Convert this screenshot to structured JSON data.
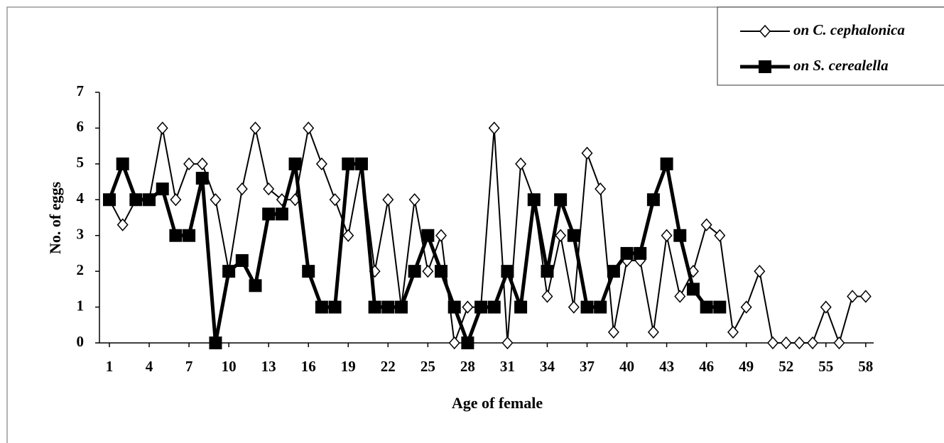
{
  "chart_data": {
    "type": "line",
    "x_label": "Age of female",
    "y_label": "No. of eggs",
    "x": [
      1,
      2,
      3,
      4,
      5,
      6,
      7,
      8,
      9,
      10,
      11,
      12,
      13,
      14,
      15,
      16,
      17,
      18,
      19,
      20,
      21,
      22,
      23,
      24,
      25,
      26,
      27,
      28,
      29,
      30,
      31,
      32,
      33,
      34,
      35,
      36,
      37,
      38,
      39,
      40,
      41,
      42,
      43,
      44,
      45,
      46,
      47,
      48,
      49,
      50,
      51,
      52,
      53,
      54,
      55,
      56,
      57,
      58
    ],
    "series": [
      {
        "name": "on C. cephalonica",
        "color": "#000000",
        "marker": "diamond",
        "values": [
          4,
          3.3,
          4,
          4,
          6,
          4,
          5,
          5,
          4,
          2,
          4.3,
          6,
          4.3,
          4,
          4,
          6,
          5,
          4,
          3,
          5,
          2,
          4,
          1,
          4,
          2,
          3,
          0,
          1,
          1,
          6,
          0,
          5,
          4,
          1.3,
          3,
          1,
          5.3,
          4.3,
          0.3,
          2.3,
          2.3,
          0.3,
          3,
          1.3,
          2,
          3.3,
          3,
          0.3,
          1,
          2,
          0,
          0,
          0,
          0,
          1,
          0,
          1.3,
          1.3
        ]
      },
      {
        "name": "on S. cerealella",
        "color": "#000000",
        "marker": "square",
        "values": [
          4,
          5,
          4,
          4,
          4.3,
          3,
          3,
          4.6,
          0,
          2,
          2.3,
          1.6,
          3.6,
          3.6,
          5,
          2,
          1,
          1,
          5,
          5,
          1,
          1,
          1,
          2,
          3,
          2,
          1,
          0,
          1,
          1,
          2,
          1,
          4,
          2,
          4,
          3,
          1,
          1,
          2,
          2.5,
          2.5,
          4,
          5,
          3,
          1.5,
          1,
          1,
          null,
          null,
          null,
          null,
          null,
          null,
          null,
          null,
          null,
          null,
          null
        ]
      }
    ],
    "xlim": [
      0.25,
      58.6
    ],
    "xticks": [
      1,
      4,
      7,
      10,
      13,
      16,
      19,
      22,
      25,
      28,
      31,
      34,
      37,
      40,
      43,
      46,
      49,
      52,
      55,
      58
    ],
    "ylim": [
      0,
      7
    ],
    "yticks": [
      0,
      1,
      2,
      3,
      4,
      5,
      6,
      7
    ],
    "legend": "top-right"
  }
}
